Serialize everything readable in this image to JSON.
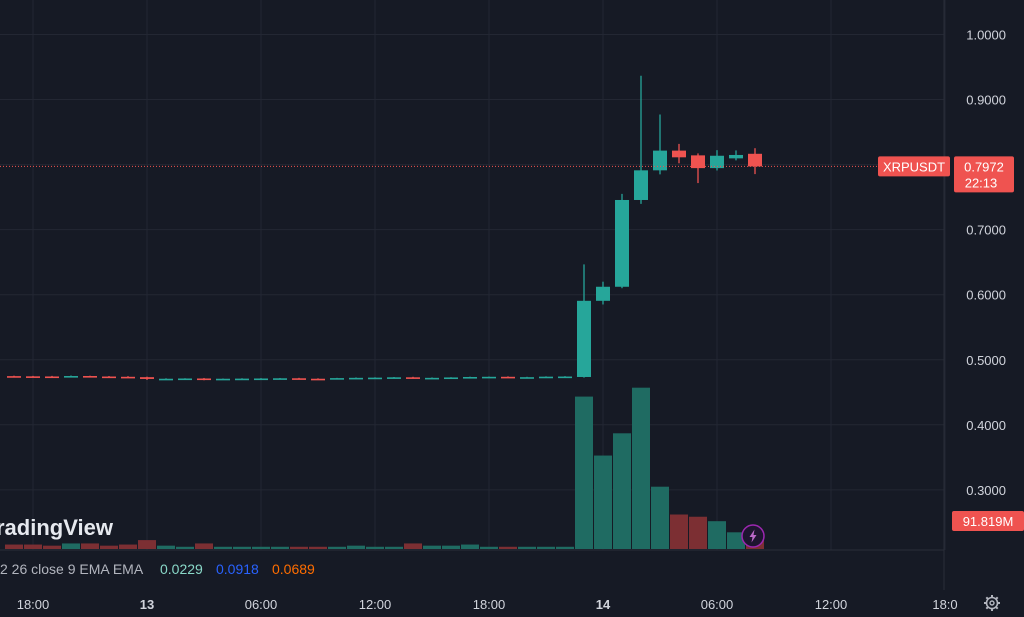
{
  "branding": {
    "logo_text": "radingView"
  },
  "symbol": {
    "name": "XRPUSDT",
    "last_price": "0.7972",
    "countdown": "22:13",
    "last_value": 0.7972
  },
  "volume_tag": "91.819M",
  "indicator": {
    "label": "2 26 close 9 EMA EMA",
    "values": [
      {
        "text": "0.0229",
        "color": "#89d8c8"
      },
      {
        "text": "0.0918",
        "color": "#2962ff"
      },
      {
        "text": "0.0689",
        "color": "#ff6d00"
      }
    ]
  },
  "colors": {
    "up": "#26a69a",
    "down": "#ef5350",
    "vol_up": "#1f6b62",
    "vol_down": "#7c2f33",
    "grid": "#232733",
    "background": "#161a25"
  },
  "x_axis_labels": [
    {
      "text": "18:00",
      "hour": -30
    },
    {
      "text": "13",
      "hour": -24,
      "bold": true
    },
    {
      "text": "06:00",
      "hour": -18
    },
    {
      "text": "12:00",
      "hour": -12
    },
    {
      "text": "18:00",
      "hour": -6
    },
    {
      "text": "14",
      "hour": 0,
      "bold": true
    },
    {
      "text": "06:00",
      "hour": 6
    },
    {
      "text": "12:00",
      "hour": 12
    },
    {
      "text": "18:0",
      "hour": 18
    }
  ],
  "chart_data": {
    "type": "candlestick",
    "interval_hours": 1,
    "x_axis": "hours relative to 14 00:00",
    "y_ticks": [
      "1.0000",
      "0.9000",
      "0.8000",
      "0.7000",
      "0.6000",
      "0.5000",
      "0.4000",
      "0.3000"
    ],
    "y_range": [
      0.24,
      1.05
    ],
    "candles": [
      {
        "t": -31,
        "o": 0.4748,
        "h": 0.4755,
        "l": 0.474,
        "c": 0.4745,
        "v": 4
      },
      {
        "t": -30,
        "o": 0.4745,
        "h": 0.4752,
        "l": 0.4738,
        "c": 0.4743,
        "v": 4
      },
      {
        "t": -29,
        "o": 0.4743,
        "h": 0.4752,
        "l": 0.4736,
        "c": 0.474,
        "v": 3
      },
      {
        "t": -28,
        "o": 0.474,
        "h": 0.4758,
        "l": 0.4735,
        "c": 0.475,
        "v": 5
      },
      {
        "t": -27,
        "o": 0.475,
        "h": 0.4755,
        "l": 0.4735,
        "c": 0.4742,
        "v": 5
      },
      {
        "t": -26,
        "o": 0.4742,
        "h": 0.475,
        "l": 0.4732,
        "c": 0.4738,
        "v": 3
      },
      {
        "t": -25,
        "o": 0.4738,
        "h": 0.4748,
        "l": 0.4728,
        "c": 0.4732,
        "v": 4
      },
      {
        "t": -24,
        "o": 0.4732,
        "h": 0.474,
        "l": 0.469,
        "c": 0.4705,
        "v": 8
      },
      {
        "t": -23,
        "o": 0.4705,
        "h": 0.4715,
        "l": 0.4695,
        "c": 0.4708,
        "v": 3
      },
      {
        "t": -22,
        "o": 0.4708,
        "h": 0.4716,
        "l": 0.4698,
        "c": 0.4712,
        "v": 2
      },
      {
        "t": -21,
        "o": 0.4712,
        "h": 0.472,
        "l": 0.4685,
        "c": 0.4695,
        "v": 5
      },
      {
        "t": -20,
        "o": 0.4695,
        "h": 0.4712,
        "l": 0.469,
        "c": 0.4708,
        "v": 2
      },
      {
        "t": -19,
        "o": 0.4708,
        "h": 0.4716,
        "l": 0.47,
        "c": 0.471,
        "v": 2
      },
      {
        "t": -18,
        "o": 0.471,
        "h": 0.4718,
        "l": 0.4702,
        "c": 0.4712,
        "v": 2
      },
      {
        "t": -17,
        "o": 0.4712,
        "h": 0.472,
        "l": 0.4705,
        "c": 0.4715,
        "v": 2
      },
      {
        "t": -16,
        "o": 0.4715,
        "h": 0.4722,
        "l": 0.4702,
        "c": 0.4708,
        "v": 2
      },
      {
        "t": -15,
        "o": 0.4708,
        "h": 0.4715,
        "l": 0.4698,
        "c": 0.4705,
        "v": 2
      },
      {
        "t": -14,
        "o": 0.4705,
        "h": 0.4722,
        "l": 0.47,
        "c": 0.4718,
        "v": 2
      },
      {
        "t": -13,
        "o": 0.4718,
        "h": 0.4728,
        "l": 0.4712,
        "c": 0.4722,
        "v": 3
      },
      {
        "t": -12,
        "o": 0.4722,
        "h": 0.473,
        "l": 0.4714,
        "c": 0.4725,
        "v": 2
      },
      {
        "t": -11,
        "o": 0.4725,
        "h": 0.4735,
        "l": 0.4718,
        "c": 0.473,
        "v": 2
      },
      {
        "t": -10,
        "o": 0.473,
        "h": 0.4738,
        "l": 0.471,
        "c": 0.4715,
        "v": 5
      },
      {
        "t": -9,
        "o": 0.4715,
        "h": 0.4728,
        "l": 0.471,
        "c": 0.4722,
        "v": 3
      },
      {
        "t": -8,
        "o": 0.4722,
        "h": 0.4732,
        "l": 0.4715,
        "c": 0.4728,
        "v": 3
      },
      {
        "t": -7,
        "o": 0.4728,
        "h": 0.474,
        "l": 0.472,
        "c": 0.4735,
        "v": 4
      },
      {
        "t": -6,
        "o": 0.4735,
        "h": 0.4742,
        "l": 0.4728,
        "c": 0.4738,
        "v": 2
      },
      {
        "t": -5,
        "o": 0.4738,
        "h": 0.4745,
        "l": 0.4725,
        "c": 0.473,
        "v": 2
      },
      {
        "t": -4,
        "o": 0.473,
        "h": 0.4738,
        "l": 0.4722,
        "c": 0.4732,
        "v": 2
      },
      {
        "t": -3,
        "o": 0.4732,
        "h": 0.4745,
        "l": 0.4728,
        "c": 0.474,
        "v": 2
      },
      {
        "t": -2,
        "o": 0.474,
        "h": 0.4748,
        "l": 0.4732,
        "c": 0.4742,
        "v": 2
      },
      {
        "t": -1,
        "o": 0.4735,
        "h": 0.6466,
        "l": 0.4725,
        "c": 0.5906,
        "v": 137
      },
      {
        "t": 0,
        "o": 0.5906,
        "h": 0.62,
        "l": 0.585,
        "c": 0.6122,
        "v": 84
      },
      {
        "t": 1,
        "o": 0.6122,
        "h": 0.755,
        "l": 0.61,
        "c": 0.7456,
        "v": 104
      },
      {
        "t": 2,
        "o": 0.7456,
        "h": 0.9366,
        "l": 0.7396,
        "c": 0.7912,
        "v": 145
      },
      {
        "t": 3,
        "o": 0.7912,
        "h": 0.877,
        "l": 0.785,
        "c": 0.8215,
        "v": 56
      },
      {
        "t": 4,
        "o": 0.8215,
        "h": 0.8318,
        "l": 0.802,
        "c": 0.8112,
        "v": 31
      },
      {
        "t": 5,
        "o": 0.8142,
        "h": 0.8172,
        "l": 0.7716,
        "c": 0.7946,
        "v": 29
      },
      {
        "t": 6,
        "o": 0.7946,
        "h": 0.8222,
        "l": 0.791,
        "c": 0.8136,
        "v": 25
      },
      {
        "t": 7,
        "o": 0.8096,
        "h": 0.8218,
        "l": 0.8065,
        "c": 0.8148,
        "v": 15
      },
      {
        "t": 8,
        "o": 0.8166,
        "h": 0.8252,
        "l": 0.7854,
        "c": 0.7972,
        "v": 11
      }
    ],
    "volume_scale_max": 160
  }
}
